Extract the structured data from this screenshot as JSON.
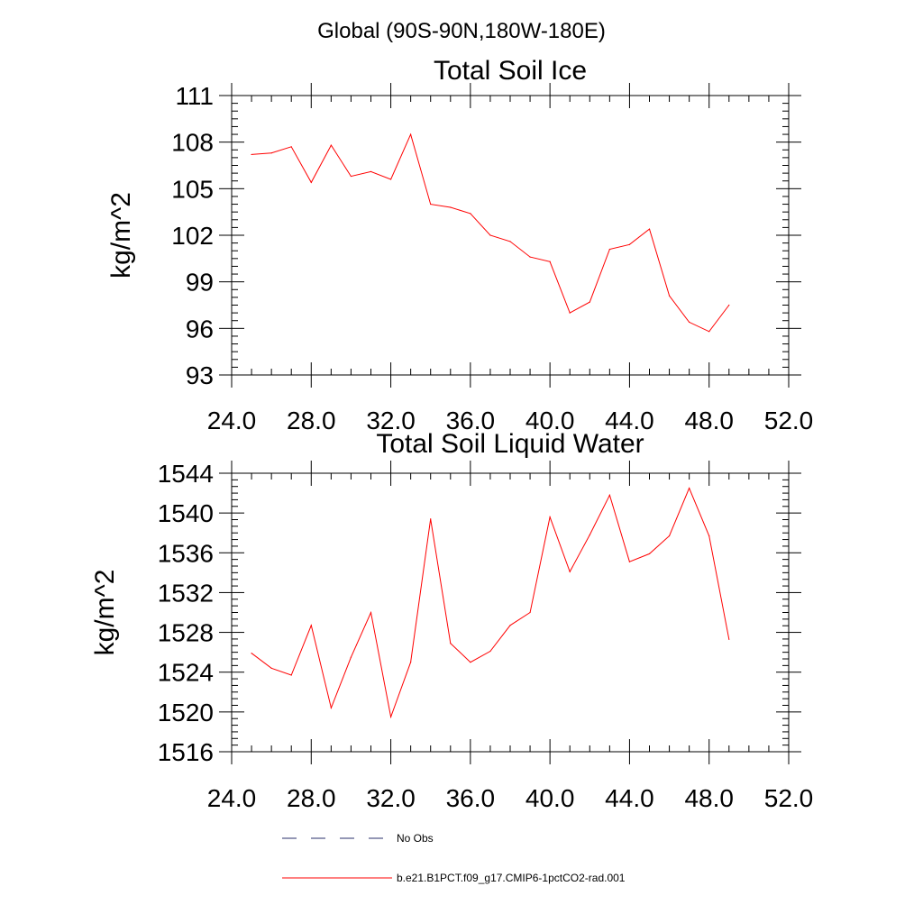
{
  "page_title": "Global (90S-90N,180W-180E)",
  "colors": {
    "series": "#ff0000",
    "obs": "#2a2f6b",
    "axis": "#000000"
  },
  "chart_data": [
    {
      "type": "line",
      "title": "Total Soil Ice",
      "ylabel": "kg/m^2",
      "xlabel": "",
      "xlim": [
        24,
        52
      ],
      "ylim": [
        93,
        111
      ],
      "xticks": [
        "24.0",
        "28.0",
        "32.0",
        "36.0",
        "40.0",
        "44.0",
        "48.0",
        "52.0"
      ],
      "yticks": [
        "93",
        "96",
        "99",
        "102",
        "105",
        "108",
        "111"
      ],
      "grid": false,
      "series": [
        {
          "name": "b.e21.B1PCT.f09_g17.CMIP6-1pctCO2-rad.001",
          "x": [
            25,
            26,
            27,
            28,
            29,
            30,
            31,
            32,
            33,
            34,
            35,
            36,
            37,
            38,
            39,
            40,
            41,
            42,
            43,
            44,
            45,
            46,
            47,
            48,
            49
          ],
          "values": [
            107.2,
            107.3,
            107.7,
            105.4,
            107.8,
            105.8,
            106.1,
            105.6,
            108.5,
            104.0,
            103.8,
            103.4,
            102.0,
            101.6,
            100.6,
            100.3,
            97.0,
            97.7,
            101.1,
            101.4,
            102.4,
            98.1,
            96.4,
            95.8,
            97.5
          ]
        }
      ]
    },
    {
      "type": "line",
      "title": "Total Soil Liquid Water",
      "ylabel": "kg/m^2",
      "xlabel": "",
      "xlim": [
        24,
        52
      ],
      "ylim": [
        1516,
        1544
      ],
      "xticks": [
        "24.0",
        "28.0",
        "32.0",
        "36.0",
        "40.0",
        "44.0",
        "48.0",
        "52.0"
      ],
      "yticks": [
        "1516",
        "1520",
        "1524",
        "1528",
        "1532",
        "1536",
        "1540",
        "1544"
      ],
      "grid": false,
      "series": [
        {
          "name": "b.e21.B1PCT.f09_g17.CMIP6-1pctCO2-rad.001",
          "x": [
            25,
            26,
            27,
            28,
            29,
            30,
            31,
            32,
            33,
            34,
            35,
            36,
            37,
            38,
            39,
            40,
            41,
            42,
            43,
            44,
            45,
            46,
            47,
            48,
            49
          ],
          "values": [
            1525.9,
            1524.4,
            1523.7,
            1528.7,
            1520.4,
            1525.5,
            1530.0,
            1519.5,
            1525.0,
            1539.4,
            1526.9,
            1525.0,
            1526.1,
            1528.7,
            1530.0,
            1539.6,
            1534.1,
            1537.8,
            1541.8,
            1535.1,
            1535.9,
            1537.7,
            1542.5,
            1537.7,
            1527.3
          ]
        }
      ]
    }
  ],
  "legend": [
    {
      "label": "No Obs",
      "style": "dashed",
      "color": "#2a2f6b"
    },
    {
      "label": "b.e21.B1PCT.f09_g17.CMIP6-1pctCO2-rad.001",
      "style": "solid",
      "color": "#ff0000"
    }
  ]
}
